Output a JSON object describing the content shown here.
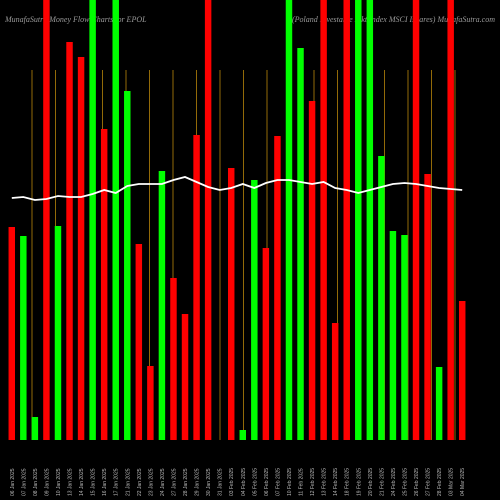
{
  "chart_data": {
    "type": "bar",
    "title": "MunafaSutra Money Flow Charts for EPOL",
    "subtitle": "(Poland Investable Mkt Index MSCI Ishares) MunafaSutra.com",
    "categories": [
      "06 Jan 2025",
      "07 Jan 2025",
      "08 Jan 2025",
      "09 Jan 2025",
      "10 Jan 2025",
      "13 Jan 2025",
      "14 Jan 2025",
      "15 Jan 2025",
      "16 Jan 2025",
      "17 Jan 2025",
      "21 Jan 2025",
      "22 Jan 2025",
      "23 Jan 2025",
      "24 Jan 2025",
      "27 Jan 2025",
      "28 Jan 2025",
      "29 Jan 2025",
      "30 Jan 2025",
      "31 Jan 2025",
      "03 Feb 2025",
      "04 Feb 2025",
      "05 Feb 2025",
      "06 Feb 2025",
      "07 Feb 2025",
      "10 Feb 2025",
      "11 Feb 2025",
      "12 Feb 2025",
      "13 Feb 2025",
      "14 Feb 2025",
      "18 Feb 2025",
      "19 Feb 2025",
      "20 Feb 2025",
      "21 Feb 2025",
      "24 Feb 2025",
      "25 Feb 2025",
      "26 Feb 2025",
      "27 Feb 2025",
      "28 Feb 2025",
      "03 Mar 2025",
      "04 Mar 2025"
    ],
    "values": [
      213,
      204,
      23,
      440,
      214,
      398,
      383,
      440,
      311,
      440,
      349,
      196,
      74,
      269,
      162,
      126,
      305,
      440,
      0,
      272,
      10,
      260,
      192,
      304,
      440,
      392,
      339,
      440,
      117,
      440,
      440,
      440,
      284,
      209,
      205,
      440,
      266,
      73,
      440,
      139
    ],
    "colors": [
      "#ff0000",
      "#00ff00",
      "#00ff00",
      "#ff0000",
      "#00ff00",
      "#ff0000",
      "#ff0000",
      "#00ff00",
      "#ff0000",
      "#00ff00",
      "#00ff00",
      "#ff0000",
      "#ff0000",
      "#00ff00",
      "#ff0000",
      "#ff0000",
      "#ff0000",
      "#ff0000",
      "#ff0000",
      "#ff0000",
      "#00ff00",
      "#00ff00",
      "#ff0000",
      "#ff0000",
      "#00ff00",
      "#00ff00",
      "#ff0000",
      "#ff0000",
      "#ff0000",
      "#ff0000",
      "#00ff00",
      "#00ff00",
      "#00ff00",
      "#00ff00",
      "#00ff00",
      "#ff0000",
      "#ff0000",
      "#00ff00",
      "#ff0000",
      "#ff0000"
    ],
    "line": {
      "color": "#ffffff",
      "values": [
        242,
        243,
        240,
        241,
        244,
        243,
        243,
        246,
        250,
        247,
        254,
        256,
        256,
        256,
        260,
        263,
        258,
        253,
        250,
        252,
        256,
        252,
        257,
        260,
        260,
        258,
        256,
        258,
        252,
        250,
        247,
        250,
        253,
        256,
        257,
        256,
        254,
        252,
        251,
        250
      ]
    },
    "ylim": [
      0,
      440
    ]
  }
}
